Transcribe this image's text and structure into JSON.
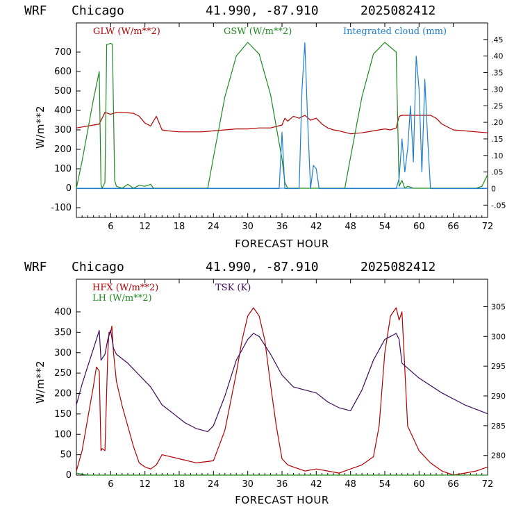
{
  "colors": {
    "red": "#b00000",
    "green": "#1e8a1e",
    "blue": "#1e7fd0",
    "purple": "#3a0a5a",
    "axis": "#000000"
  },
  "panels": [
    {
      "header": {
        "model": "WRF",
        "location": "Chicago",
        "coords": "41.990, -87.910",
        "run": "2025082412"
      },
      "xlabel": "FORECAST HOUR",
      "ylabel": "W/m**2"
    },
    {
      "header": {
        "model": "WRF",
        "location": "Chicago",
        "coords": "41.990, -87.910",
        "run": "2025082412"
      },
      "xlabel": "FORECAST HOUR",
      "ylabel": "W/m**2"
    }
  ],
  "chart_data": [
    {
      "type": "line",
      "xlim": [
        0,
        72
      ],
      "ylim": [
        -150,
        850
      ],
      "y2lim": [
        -0.087,
        0.5
      ],
      "x_ticks": [
        6,
        12,
        18,
        24,
        30,
        36,
        42,
        48,
        54,
        60,
        66,
        72
      ],
      "y_ticks": [
        -100,
        0,
        100,
        200,
        300,
        400,
        500,
        600,
        700
      ],
      "y2_ticks": [
        -0.05,
        0,
        0.05,
        0.1,
        0.15,
        0.2,
        0.25,
        0.3,
        0.35,
        0.4,
        0.45
      ],
      "y2_tick_labels": [
        "-.05",
        "0",
        ".05",
        ".10",
        ".15",
        ".20",
        ".25",
        ".30",
        ".35",
        ".40",
        ".45"
      ],
      "series": [
        {
          "name": "GLW (W/m**2)",
          "axis": "left",
          "color": "#b00000",
          "x": [
            0,
            1,
            2,
            3,
            4,
            5,
            6,
            7,
            8,
            9,
            10,
            11,
            12,
            13,
            14,
            15,
            16,
            18,
            20,
            22,
            24,
            26,
            28,
            30,
            32,
            34,
            36,
            36.5,
            37,
            38,
            39,
            40,
            41,
            42,
            43,
            44,
            45,
            46,
            48,
            50,
            52,
            54,
            55,
            56,
            56.5,
            57,
            58,
            59,
            60,
            61,
            62,
            63,
            64,
            66,
            68,
            70,
            72
          ],
          "y": [
            310,
            315,
            320,
            325,
            330,
            390,
            380,
            390,
            390,
            388,
            385,
            370,
            335,
            320,
            370,
            300,
            295,
            290,
            290,
            290,
            295,
            300,
            305,
            305,
            310,
            310,
            325,
            360,
            345,
            370,
            360,
            375,
            350,
            360,
            330,
            310,
            300,
            295,
            280,
            285,
            295,
            305,
            300,
            310,
            370,
            375,
            375,
            375,
            375,
            375,
            375,
            360,
            330,
            300,
            295,
            290,
            285
          ]
        },
        {
          "name": "GSW (W/m**2)",
          "axis": "left",
          "color": "#1e8a1e",
          "x": [
            0,
            1,
            2,
            3,
            4,
            4.3,
            4.5,
            5,
            5.3,
            5.5,
            6,
            6.3,
            6.7,
            7,
            8,
            9,
            10,
            11,
            12,
            13,
            13.5,
            14,
            23,
            24,
            26,
            28,
            30,
            32,
            34,
            36,
            36.5,
            37,
            47,
            48,
            50,
            52,
            54,
            56,
            56.5,
            57,
            57.5,
            58,
            59,
            60,
            70,
            71,
            72
          ],
          "y": [
            0,
            140,
            300,
            460,
            600,
            20,
            0,
            30,
            740,
            740,
            745,
            740,
            40,
            10,
            0,
            20,
            0,
            15,
            10,
            20,
            0,
            0,
            0,
            160,
            470,
            680,
            750,
            690,
            480,
            150,
            30,
            0,
            0,
            160,
            470,
            690,
            750,
            700,
            10,
            40,
            0,
            10,
            0,
            0,
            0,
            10,
            70
          ]
        },
        {
          "name": "Integrated cloud (mm)",
          "axis": "right",
          "color": "#1e7fd0",
          "x": [
            0,
            35.5,
            36,
            36.5,
            37,
            37.5,
            38,
            39,
            39.5,
            40,
            40.5,
            41,
            41.5,
            42,
            42.5,
            56,
            56.5,
            57,
            57.5,
            58,
            58.5,
            59,
            59.5,
            60,
            60.5,
            61,
            61.5,
            62,
            72
          ],
          "y": [
            0,
            0,
            0.17,
            0,
            0,
            0,
            0,
            0,
            0.3,
            0.44,
            0.2,
            0,
            0.07,
            0.06,
            0,
            0,
            0.03,
            0.15,
            0.05,
            0.12,
            0.25,
            0.08,
            0.4,
            0.3,
            0.05,
            0.33,
            0.15,
            0,
            0
          ]
        }
      ]
    },
    {
      "type": "line",
      "xlim": [
        0,
        72
      ],
      "ylim": [
        0,
        480
      ],
      "y2lim": [
        276.7,
        309.6
      ],
      "x_ticks": [
        6,
        12,
        18,
        24,
        30,
        36,
        42,
        48,
        54,
        60,
        66,
        72
      ],
      "y_ticks": [
        0,
        50,
        100,
        150,
        200,
        250,
        300,
        350,
        400
      ],
      "y2_ticks": [
        280,
        285,
        290,
        295,
        300,
        305
      ],
      "y2_tick_labels": [
        "280",
        "285",
        "290",
        "295",
        "300",
        "305"
      ],
      "series": [
        {
          "name": "HFX (W/m**2)",
          "axis": "left",
          "color": "#b00000",
          "x": [
            0,
            1,
            2,
            3,
            3.5,
            4,
            4.3,
            4.5,
            5,
            5.5,
            5.7,
            6,
            6.2,
            6.5,
            7,
            8,
            9,
            10,
            11,
            12,
            13,
            14,
            15,
            18,
            21,
            24,
            26,
            28,
            29,
            30,
            31,
            32,
            33,
            34,
            35,
            36,
            37,
            38,
            40,
            42,
            44,
            46,
            48,
            50,
            52,
            53,
            54,
            55,
            56,
            56.5,
            57,
            58,
            60,
            62,
            64,
            66,
            68,
            70,
            72
          ],
          "y": [
            10,
            60,
            140,
            220,
            265,
            255,
            60,
            65,
            60,
            300,
            350,
            350,
            365,
            300,
            230,
            170,
            120,
            70,
            30,
            20,
            15,
            25,
            50,
            40,
            30,
            35,
            110,
            250,
            330,
            390,
            410,
            390,
            330,
            220,
            120,
            40,
            25,
            20,
            10,
            15,
            10,
            5,
            15,
            25,
            45,
            120,
            300,
            390,
            410,
            380,
            400,
            120,
            60,
            30,
            10,
            0,
            5,
            10,
            20
          ]
        },
        {
          "name": "LH (W/m**2)",
          "axis": "left",
          "color": "#1e8a1e",
          "x": [
            0,
            1,
            2,
            3,
            72
          ],
          "y": [
            5,
            2,
            0,
            0,
            0
          ]
        },
        {
          "name": "TSK (K)",
          "axis": "right",
          "color": "#3a0a5a",
          "x": [
            0,
            1,
            2,
            3,
            4,
            4.3,
            5,
            5.5,
            6,
            6.5,
            7,
            9,
            11,
            13,
            14,
            15,
            17,
            19,
            21,
            23,
            24,
            26,
            28,
            30,
            31,
            32,
            34,
            36,
            38,
            40,
            42,
            44,
            46,
            48,
            50,
            52,
            54,
            55,
            56,
            56.5,
            57,
            60,
            64,
            68,
            72
          ],
          "y": [
            288.5,
            292,
            295,
            298,
            301,
            296,
            297,
            299.5,
            301,
            298,
            297,
            295.5,
            293.5,
            291.5,
            290,
            288.5,
            287,
            285.5,
            284.5,
            284,
            285,
            290,
            296,
            299.5,
            300.5,
            300,
            297,
            293.5,
            291.5,
            291,
            290.5,
            289,
            288,
            287.5,
            291,
            296,
            299.5,
            300,
            300.5,
            299.5,
            295.5,
            293,
            290.5,
            288.5,
            287
          ]
        }
      ]
    }
  ]
}
